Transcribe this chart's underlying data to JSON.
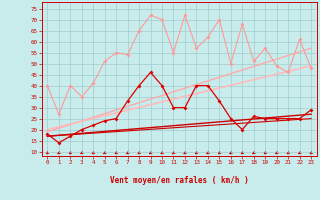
{
  "x": [
    0,
    1,
    2,
    3,
    4,
    5,
    6,
    7,
    8,
    9,
    10,
    11,
    12,
    13,
    14,
    15,
    16,
    17,
    18,
    19,
    20,
    21,
    22,
    23
  ],
  "pink_line": [
    40,
    27,
    40,
    35,
    41,
    51,
    55,
    54,
    65,
    72,
    70,
    55,
    72,
    57,
    62,
    70,
    50,
    68,
    51,
    57,
    49,
    46,
    61,
    48
  ],
  "pink_color": "#ff9999",
  "pink_trend1_y": [
    19,
    57
  ],
  "pink_trend2_y": [
    20,
    49
  ],
  "pink_trend_color1": "#ffaaaa",
  "pink_trend_color2": "#ffbbbb",
  "red_line": [
    18,
    14,
    17,
    20,
    22,
    24,
    25,
    33,
    40,
    46,
    40,
    30,
    30,
    40,
    40,
    33,
    25,
    20,
    26,
    25,
    25,
    25,
    25,
    29
  ],
  "red_color": "#dd0000",
  "red_trend1_y": [
    17,
    27
  ],
  "red_trend2_y": [
    17,
    25
  ],
  "red_trend_color": "#cc0000",
  "bg_color": "#c8ecec",
  "grid_color": "#a0cccc",
  "xlabel": "Vent moyen/en rafales ( km/h )",
  "yticks": [
    10,
    15,
    20,
    25,
    30,
    35,
    40,
    45,
    50,
    55,
    60,
    65,
    70,
    75
  ],
  "ylim": [
    8,
    78
  ],
  "xlim": [
    -0.5,
    23.5
  ]
}
